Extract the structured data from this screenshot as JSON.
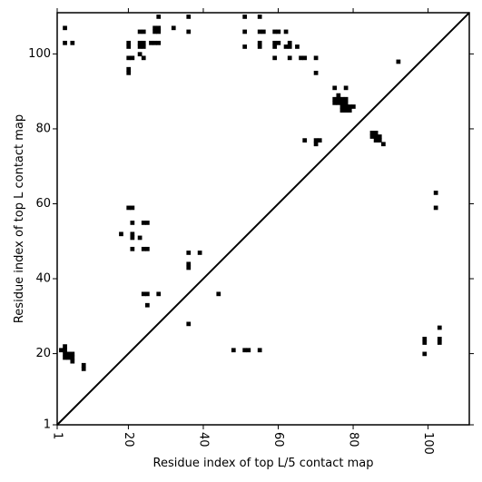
{
  "chart_data": {
    "type": "heatmap",
    "title": "",
    "xlabel": "Residue index of top L/5 contact map",
    "ylabel": "Residue index of top L contact map",
    "xlim": [
      1,
      111
    ],
    "ylim": [
      1,
      111
    ],
    "x_ticks": [
      1,
      20,
      40,
      60,
      80,
      100
    ],
    "x_tick_labels": [
      "1",
      "20",
      "40",
      "60",
      "80",
      "100"
    ],
    "y_ticks": [
      1,
      20,
      40,
      60,
      80,
      100
    ],
    "y_tick_labels": [
      "1",
      "20",
      "40",
      "60",
      "80",
      "100"
    ],
    "x_tick_label_rotation": "vertical",
    "grid": false,
    "diagonal_line": true,
    "contact_color": "#000000",
    "upper_triangle_contacts": [
      [
        3,
        107
      ],
      [
        3,
        103
      ],
      [
        5,
        103
      ],
      [
        20,
        103
      ],
      [
        20,
        102
      ],
      [
        20,
        99
      ],
      [
        20,
        96
      ],
      [
        20,
        95
      ],
      [
        21,
        99
      ],
      [
        23,
        106
      ],
      [
        24,
        106
      ],
      [
        23,
        103
      ],
      [
        24,
        103
      ],
      [
        23,
        102
      ],
      [
        24,
        102
      ],
      [
        23,
        100
      ],
      [
        24,
        99
      ],
      [
        26,
        103
      ],
      [
        27,
        103
      ],
      [
        28,
        103
      ],
      [
        27,
        107
      ],
      [
        28,
        107
      ],
      [
        27,
        106
      ],
      [
        28,
        106
      ],
      [
        28,
        110
      ],
      [
        32,
        107
      ],
      [
        36,
        110
      ],
      [
        36,
        106
      ],
      [
        51,
        110
      ],
      [
        51,
        106
      ],
      [
        51,
        102
      ],
      [
        55,
        110
      ],
      [
        55,
        106
      ],
      [
        56,
        106
      ],
      [
        55,
        103
      ],
      [
        55,
        102
      ],
      [
        59,
        106
      ],
      [
        60,
        106
      ],
      [
        59,
        103
      ],
      [
        60,
        103
      ],
      [
        59,
        102
      ],
      [
        59,
        99
      ],
      [
        62,
        106
      ],
      [
        62,
        102
      ],
      [
        63,
        102
      ],
      [
        63,
        103
      ],
      [
        63,
        99
      ],
      [
        65,
        102
      ],
      [
        66,
        99
      ],
      [
        67,
        99
      ],
      [
        70,
        99
      ],
      [
        70,
        95
      ],
      [
        75,
        91
      ],
      [
        78,
        91
      ],
      [
        75,
        88
      ],
      [
        76,
        88
      ],
      [
        77,
        88
      ],
      [
        78,
        88
      ],
      [
        75,
        87
      ],
      [
        76,
        87
      ],
      [
        77,
        87
      ],
      [
        78,
        87
      ],
      [
        76,
        89
      ],
      [
        77,
        86
      ],
      [
        78,
        86
      ],
      [
        79,
        86
      ],
      [
        80,
        86
      ],
      [
        77,
        85
      ],
      [
        78,
        85
      ],
      [
        79,
        85
      ],
      [
        85,
        79
      ],
      [
        86,
        79
      ],
      [
        85,
        78
      ],
      [
        86,
        78
      ],
      [
        87,
        78
      ],
      [
        86,
        77
      ],
      [
        87,
        77
      ],
      [
        88,
        76
      ],
      [
        67,
        77
      ],
      [
        70,
        77
      ],
      [
        71,
        77
      ],
      [
        70,
        76
      ],
      [
        92,
        98
      ]
    ],
    "lower_triangle_contacts": [
      [
        20,
        59
      ],
      [
        21,
        59
      ],
      [
        21,
        55
      ],
      [
        21,
        52
      ],
      [
        21,
        51
      ],
      [
        21,
        48
      ],
      [
        18,
        52
      ],
      [
        23,
        51
      ],
      [
        24,
        55
      ],
      [
        25,
        55
      ],
      [
        24,
        48
      ],
      [
        25,
        48
      ],
      [
        24,
        36
      ],
      [
        25,
        36
      ],
      [
        28,
        36
      ],
      [
        25,
        33
      ],
      [
        36,
        47
      ],
      [
        39,
        47
      ],
      [
        36,
        44
      ],
      [
        36,
        43
      ],
      [
        44,
        36
      ],
      [
        36,
        28
      ],
      [
        2,
        21
      ],
      [
        3,
        21
      ],
      [
        3,
        22
      ],
      [
        3,
        20
      ],
      [
        4,
        20
      ],
      [
        5,
        20
      ],
      [
        3,
        19
      ],
      [
        4,
        19
      ],
      [
        5,
        19
      ],
      [
        5,
        18
      ],
      [
        8,
        17
      ],
      [
        8,
        16
      ],
      [
        48,
        21
      ],
      [
        51,
        21
      ],
      [
        52,
        21
      ],
      [
        55,
        21
      ],
      [
        99,
        24
      ],
      [
        99,
        23
      ],
      [
        99,
        20
      ],
      [
        103,
        27
      ],
      [
        103,
        24
      ],
      [
        103,
        23
      ],
      [
        102,
        63
      ],
      [
        102,
        59
      ]
    ]
  }
}
